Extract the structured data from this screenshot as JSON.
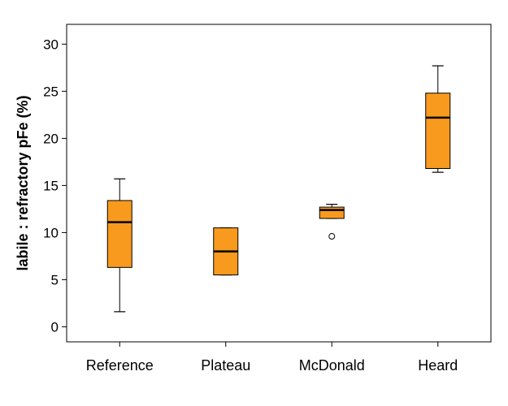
{
  "chart_data": {
    "type": "box",
    "categories": [
      "Reference",
      "Plateau",
      "McDonald",
      "Heard"
    ],
    "boxes": [
      {
        "category": "Reference",
        "min": 1.6,
        "q1": 6.3,
        "median": 11.1,
        "q3": 13.4,
        "max": 15.7,
        "outliers": []
      },
      {
        "category": "Plateau",
        "min": 5.5,
        "q1": 5.5,
        "median": 8.0,
        "q3": 10.5,
        "max": 10.5,
        "outliers": []
      },
      {
        "category": "McDonald",
        "min": 11.5,
        "q1": 11.5,
        "median": 12.4,
        "q3": 12.7,
        "max": 13.0,
        "outliers": [
          9.6
        ]
      },
      {
        "category": "Heard",
        "min": 16.4,
        "q1": 16.8,
        "median": 22.2,
        "q3": 24.8,
        "max": 27.7,
        "outliers": []
      }
    ],
    "y_ticks": [
      0,
      5,
      10,
      15,
      20,
      25,
      30
    ],
    "ylim": [
      -1.6,
      32.1
    ],
    "xlabel": "",
    "ylabel": "labile : refractory pFe (%)",
    "grid": false,
    "colors": {
      "box_fill": "#f89a1e",
      "box_stroke": "#000000",
      "median": "#000000"
    }
  }
}
